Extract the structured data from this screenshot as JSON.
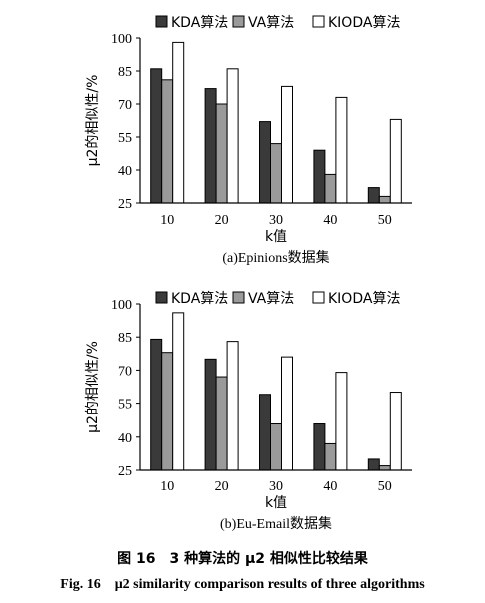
{
  "chart_data": [
    {
      "type": "bar",
      "subtitle": "(a)Epinions数据集",
      "xlabel": "k值",
      "ylabel": "μ2的相似性/%",
      "categories": [
        "10",
        "20",
        "30",
        "40",
        "50"
      ],
      "yticks": [
        "25",
        "40",
        "55",
        "70",
        "85",
        "100"
      ],
      "ylim": [
        25,
        100
      ],
      "legend_position": "top",
      "series": [
        {
          "name": "KDA算法",
          "color": "#3a3a3a",
          "values": [
            86,
            77,
            62,
            49,
            32
          ]
        },
        {
          "name": "VA算法",
          "color": "#9a9a9a",
          "values": [
            81,
            70,
            52,
            38,
            28
          ]
        },
        {
          "name": "KIODA算法",
          "color": "#ffffff",
          "values": [
            98,
            86,
            78,
            73,
            63
          ]
        }
      ]
    },
    {
      "type": "bar",
      "subtitle": "(b)Eu-Email数据集",
      "xlabel": "k值",
      "ylabel": "μ2的相似性/%",
      "categories": [
        "10",
        "20",
        "30",
        "40",
        "50"
      ],
      "yticks": [
        "25",
        "40",
        "55",
        "70",
        "85",
        "100"
      ],
      "ylim": [
        25,
        100
      ],
      "legend_position": "top",
      "series": [
        {
          "name": "KDA算法",
          "color": "#3a3a3a",
          "values": [
            84,
            75,
            59,
            46,
            30
          ]
        },
        {
          "name": "VA算法",
          "color": "#9a9a9a",
          "values": [
            78,
            67,
            46,
            37,
            27
          ]
        },
        {
          "name": "KIODA算法",
          "color": "#ffffff",
          "values": [
            96,
            83,
            76,
            69,
            60
          ]
        }
      ]
    }
  ],
  "caption": {
    "cn": "图 16　3 种算法的 μ2 相似性比较结果",
    "en": "Fig. 16　μ2 similarity comparison results of three algorithms"
  }
}
